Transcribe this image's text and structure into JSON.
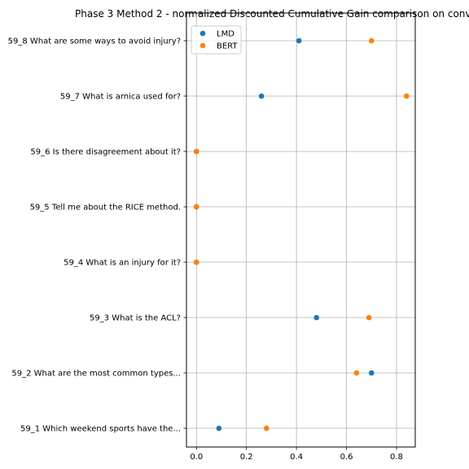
{
  "chart_data": {
    "type": "scatter",
    "title": "Phase 3 Method 2 - normalized Discounted Cumulative Gain comparison on conv",
    "xlabel": "",
    "ylabel": "",
    "xlim": [
      -0.04,
      0.875
    ],
    "xticks": [
      0.0,
      0.2,
      0.4,
      0.6,
      0.8
    ],
    "xtick_labels": [
      "0.0",
      "0.2",
      "0.4",
      "0.6",
      "0.8"
    ],
    "categories": [
      "59_1 Which weekend sports have the...",
      "59_2 What are the most common types...",
      "59_3 What is the ACL?",
      "59_4 What is an injury for it?",
      "59_5 Tell me about the RICE method.",
      "59_6 Is there disagreement about it?",
      "59_7 What is arnica used for?",
      "59_8 What are some ways to avoid injury?"
    ],
    "grid": true,
    "legend_position": "top-left",
    "series": [
      {
        "name": "LMD",
        "color": "#1f77b4",
        "values": [
          0.09,
          0.7,
          0.48,
          0.0,
          0.0,
          0.0,
          0.26,
          0.41
        ]
      },
      {
        "name": "BERT",
        "color": "#ff7f0e",
        "values": [
          0.28,
          0.64,
          0.69,
          0.0,
          0.0,
          0.0,
          0.84,
          0.7
        ]
      }
    ]
  }
}
